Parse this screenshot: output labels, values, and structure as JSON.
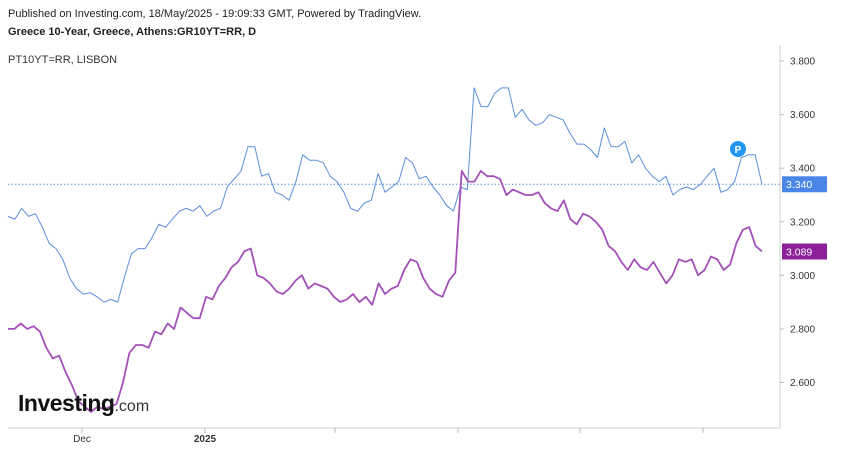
{
  "header": {
    "published": "Published on Investing.com, 18/May/2025 - 19:09:33 GMT, Powered by TradingView.",
    "title": "Greece 10-Year, Greece, Athens:GR10YT=RR, D",
    "comparison": "PT10YT=RR, LISBON"
  },
  "logo": {
    "main": "Investing",
    "suffix": ".com"
  },
  "colors": {
    "greece": "#5b8fdb",
    "portugal": "#a350b8",
    "greece_badge": "#4a86e8",
    "portugal_badge": "#8e1f9b",
    "marker": "#2196f3"
  },
  "marker": {
    "label": "P"
  },
  "chart_data": {
    "type": "line",
    "ylim": [
      2.43,
      3.86
    ],
    "y_ticks": [
      "2.600",
      "2.800",
      "3.000",
      "3.200",
      "3.400",
      "3.600",
      "3.800"
    ],
    "x_tick_labels": [
      "Dec",
      "2025"
    ],
    "series": [
      {
        "name": "Greece 10-Year",
        "last_label": "3.340",
        "values": [
          3.22,
          3.21,
          3.25,
          3.22,
          3.23,
          3.18,
          3.12,
          3.1,
          3.06,
          2.99,
          2.95,
          2.93,
          2.935,
          2.92,
          2.9,
          2.91,
          2.9,
          2.995,
          3.08,
          3.1,
          3.1,
          3.14,
          3.19,
          3.18,
          3.21,
          3.24,
          3.25,
          3.24,
          3.26,
          3.22,
          3.24,
          3.25,
          3.33,
          3.36,
          3.39,
          3.48,
          3.48,
          3.37,
          3.38,
          3.31,
          3.3,
          3.28,
          3.35,
          3.45,
          3.43,
          3.43,
          3.42,
          3.37,
          3.35,
          3.31,
          3.25,
          3.24,
          3.27,
          3.28,
          3.38,
          3.31,
          3.33,
          3.35,
          3.44,
          3.42,
          3.36,
          3.37,
          3.33,
          3.3,
          3.26,
          3.24,
          3.33,
          3.32,
          3.7,
          3.63,
          3.63,
          3.68,
          3.7,
          3.7,
          3.59,
          3.62,
          3.58,
          3.56,
          3.57,
          3.6,
          3.59,
          3.58,
          3.53,
          3.49,
          3.49,
          3.47,
          3.44,
          3.55,
          3.48,
          3.48,
          3.5,
          3.42,
          3.45,
          3.4,
          3.37,
          3.35,
          3.37,
          3.3,
          3.32,
          3.33,
          3.32,
          3.34,
          3.37,
          3.4,
          3.31,
          3.32,
          3.35,
          3.44,
          3.45,
          3.45,
          3.34
        ]
      },
      {
        "name": "PT10YT=RR, LISBON",
        "last_label": "3.089",
        "values": [
          2.8,
          2.8,
          2.82,
          2.8,
          2.81,
          2.79,
          2.73,
          2.69,
          2.7,
          2.64,
          2.59,
          2.53,
          2.51,
          2.49,
          2.51,
          2.5,
          2.51,
          2.52,
          2.6,
          2.71,
          2.74,
          2.74,
          2.73,
          2.79,
          2.78,
          2.82,
          2.8,
          2.88,
          2.86,
          2.84,
          2.84,
          2.92,
          2.91,
          2.96,
          2.99,
          3.03,
          3.05,
          3.09,
          3.1,
          3.0,
          2.99,
          2.97,
          2.94,
          2.93,
          2.95,
          2.98,
          3.0,
          2.95,
          2.97,
          2.96,
          2.95,
          2.92,
          2.9,
          2.91,
          2.93,
          2.9,
          2.92,
          2.89,
          2.97,
          2.93,
          2.95,
          2.96,
          3.02,
          3.06,
          3.05,
          2.99,
          2.95,
          2.93,
          2.92,
          2.98,
          3.01,
          3.39,
          3.35,
          3.35,
          3.39,
          3.37,
          3.37,
          3.36,
          3.3,
          3.32,
          3.31,
          3.3,
          3.3,
          3.31,
          3.27,
          3.25,
          3.24,
          3.28,
          3.21,
          3.19,
          3.23,
          3.22,
          3.2,
          3.17,
          3.11,
          3.09,
          3.05,
          3.02,
          3.06,
          3.03,
          3.02,
          3.05,
          3.01,
          2.97,
          3.0,
          3.06,
          3.05,
          3.06,
          3.0,
          3.02,
          3.07,
          3.06,
          3.02,
          3.04,
          3.12,
          3.17,
          3.18,
          3.11,
          3.089
        ]
      }
    ]
  }
}
